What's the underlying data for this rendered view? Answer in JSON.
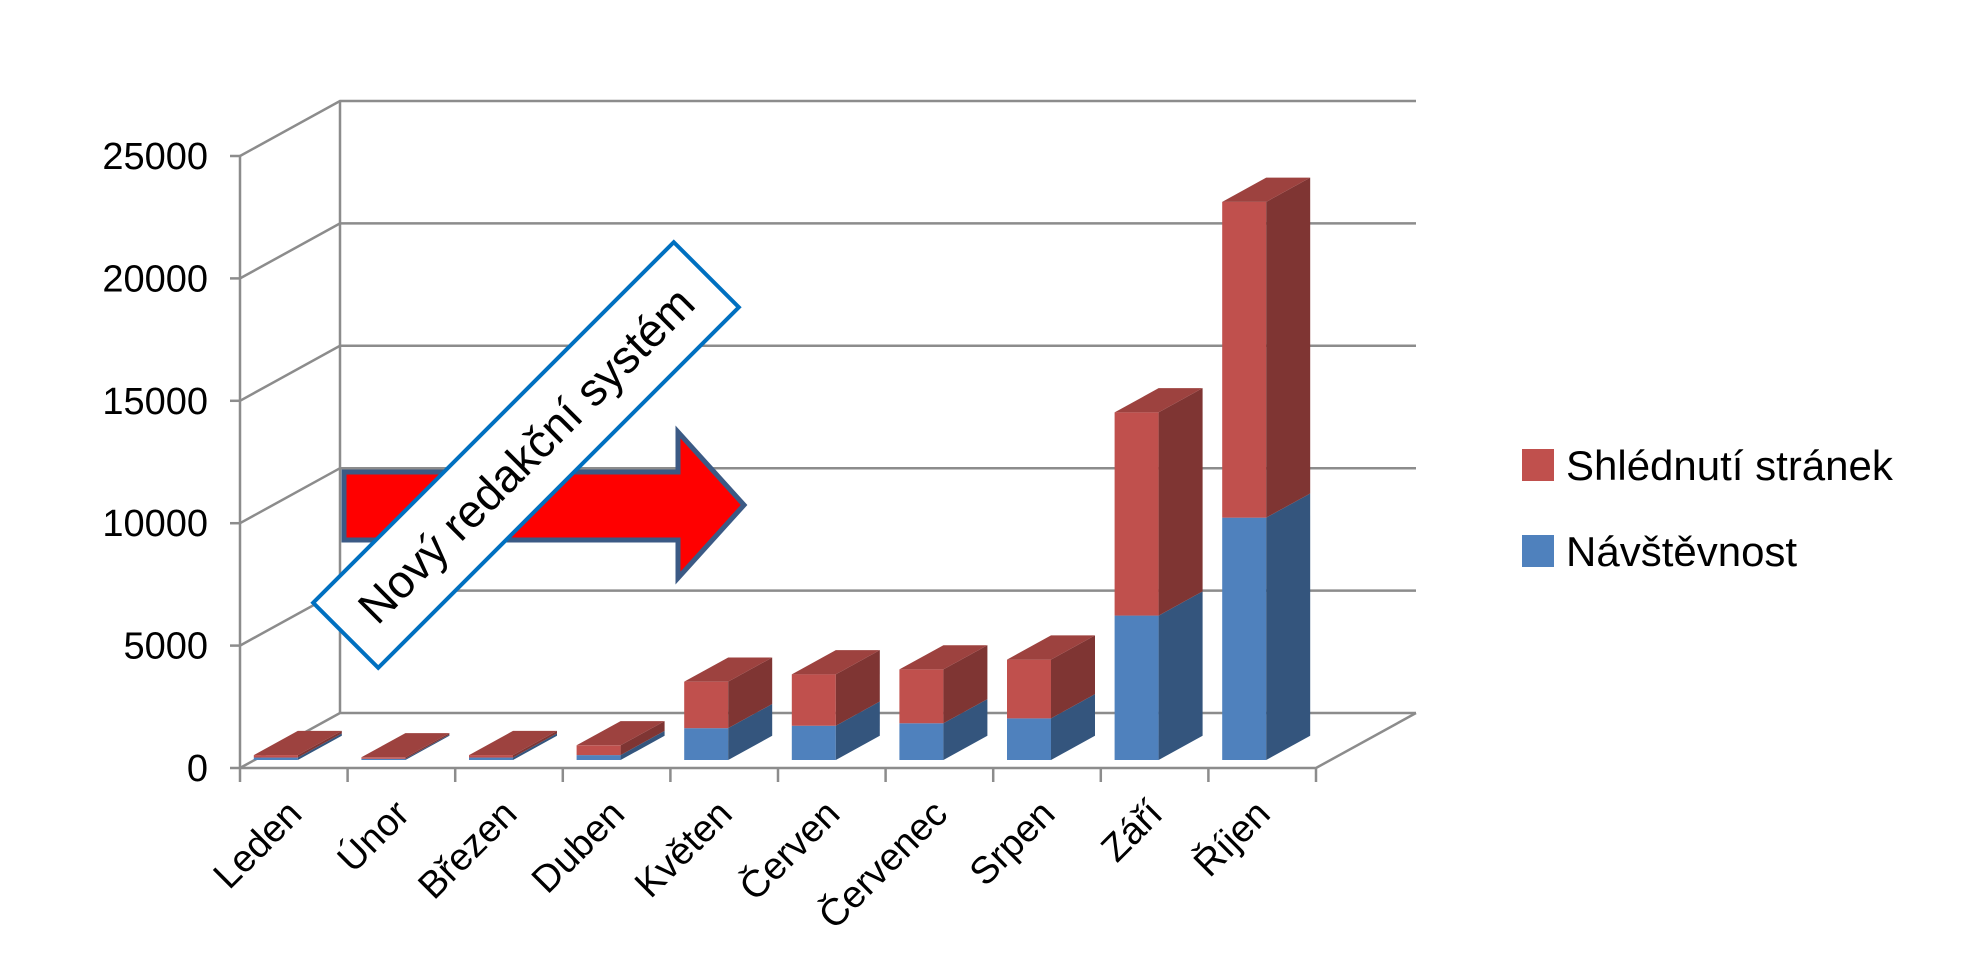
{
  "chart_data": {
    "type": "bar",
    "stacked": true,
    "three_d": true,
    "categories": [
      "Leden",
      "Únor",
      "Březen",
      "Duben",
      "Květen",
      "Červen",
      "Červenec",
      "Srpen",
      "Září",
      "Říjen"
    ],
    "series": [
      {
        "name": "Návštěvnost",
        "color": "#4f81bd",
        "values": [
          100,
          50,
          100,
          200,
          1300,
          1400,
          1500,
          1700,
          5900,
          9900
        ]
      },
      {
        "name": "Shlédnutí stránek",
        "color": "#c0504d",
        "values": [
          100,
          60,
          100,
          400,
          1900,
          2100,
          2200,
          2400,
          8300,
          12900
        ]
      }
    ],
    "ylim": [
      0,
      25000
    ],
    "yticks": [
      "0",
      "5000",
      "10000",
      "15000",
      "20000",
      "25000"
    ],
    "grid": true,
    "legend_position": "right",
    "annotation": {
      "text": "Nový redakční systém",
      "arrow_color": "#ff0000"
    }
  }
}
